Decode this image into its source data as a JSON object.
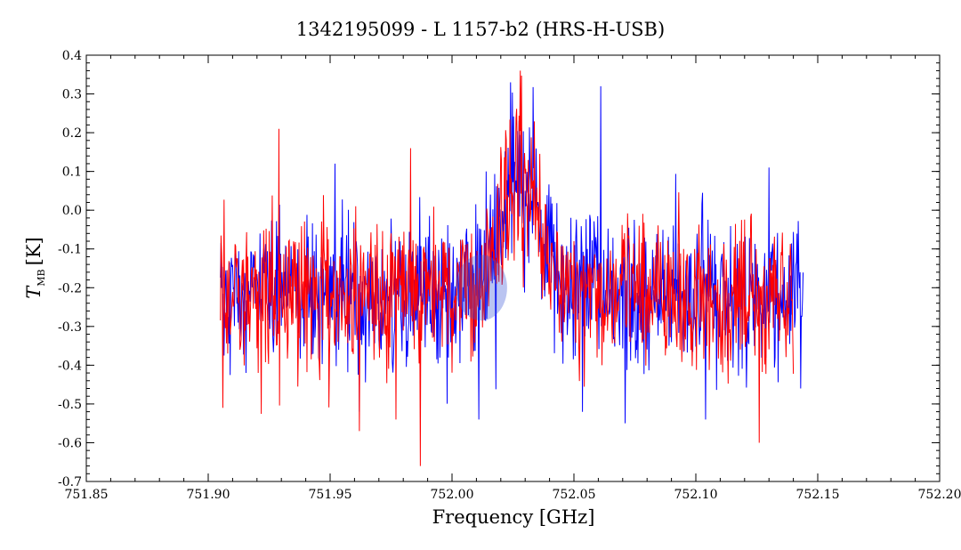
{
  "chart_data": {
    "type": "line",
    "title": "1342195099 - L 1157-b2 (HRS-H-USB)",
    "xlabel": "Frequency [GHz]",
    "ylabel": {
      "symbol": "T",
      "subscript": "MB",
      "unit": "[K]"
    },
    "xlim": [
      751.85,
      752.2
    ],
    "ylim": [
      -0.7,
      0.4
    ],
    "xticks": [
      "751.85",
      "751.90",
      "751.95",
      "752.00",
      "752.05",
      "752.10",
      "752.15",
      "752.20"
    ],
    "yticks": [
      "-0.7",
      "-0.6",
      "-0.5",
      "-0.4",
      "-0.3",
      "-0.2",
      "-0.1",
      "0.0",
      "0.1",
      "0.2",
      "0.3",
      "0.4"
    ],
    "grid": false,
    "legend": "none",
    "series": [
      {
        "color": "#0000ff",
        "x_start": 751.905,
        "x_end": 752.144,
        "baseline": -0.22,
        "noise_rms": 0.1,
        "peak": {
          "center": 752.028,
          "amplitude": 0.3,
          "width": 0.008
        },
        "highlights": [
          {
            "x": 752.014,
            "y": 0.1
          },
          {
            "x": 752.024,
            "y": 0.33
          },
          {
            "x": 752.061,
            "y": 0.32
          },
          {
            "x": 751.952,
            "y": 0.12
          },
          {
            "x": 752.13,
            "y": 0.11
          },
          {
            "x": 751.962,
            "y": -0.52
          },
          {
            "x": 752.071,
            "y": -0.55
          },
          {
            "x": 752.104,
            "y": -0.54
          },
          {
            "x": 752.011,
            "y": -0.54
          },
          {
            "x": 752.143,
            "y": -0.46
          }
        ]
      },
      {
        "color": "#ff0000",
        "x_start": 751.905,
        "x_end": 752.14,
        "baseline": -0.22,
        "noise_rms": 0.1,
        "peak": {
          "center": 752.028,
          "amplitude": 0.28,
          "width": 0.008
        },
        "highlights": [
          {
            "x": 751.906,
            "y": -0.51
          },
          {
            "x": 751.929,
            "y": 0.21
          },
          {
            "x": 751.983,
            "y": 0.16
          },
          {
            "x": 752.028,
            "y": 0.36
          },
          {
            "x": 751.987,
            "y": -0.66
          },
          {
            "x": 751.962,
            "y": -0.57
          },
          {
            "x": 752.126,
            "y": -0.6
          },
          {
            "x": 751.977,
            "y": -0.54
          }
        ]
      }
    ],
    "marker": {
      "x": 752.012,
      "y": -0.2,
      "color": "#3a55d8",
      "opacity": 0.35
    }
  }
}
